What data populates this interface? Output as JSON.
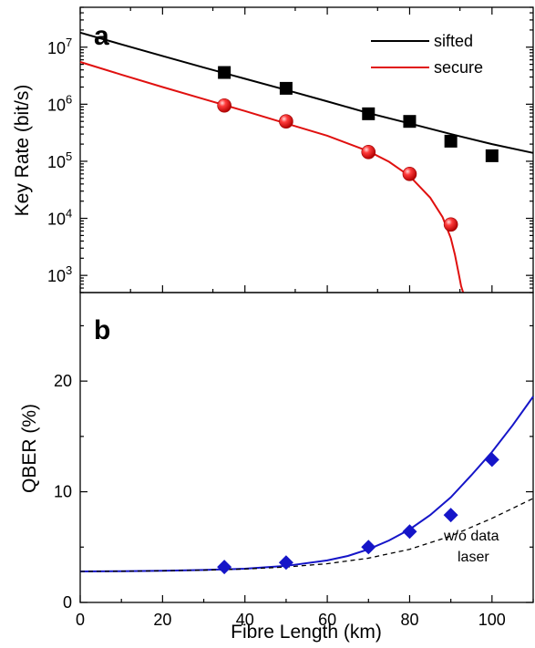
{
  "chart_data": [
    {
      "panel_label": "a",
      "type": "scatter",
      "ylabel": "Key Rate (bit/s)",
      "yscale": "log",
      "xlim": [
        0,
        110
      ],
      "ylim": [
        500,
        50000000
      ],
      "yticks": [
        {
          "value": 1000,
          "base": "10",
          "exp": "3"
        },
        {
          "value": 10000,
          "base": "10",
          "exp": "4"
        },
        {
          "value": 100000,
          "base": "10",
          "exp": "5"
        },
        {
          "value": 1000000,
          "base": "10",
          "exp": "6"
        },
        {
          "value": 10000000,
          "base": "10",
          "exp": "7"
        }
      ],
      "legend_position": "top-right",
      "series": [
        {
          "name": "sifted",
          "color": "#000000",
          "marker": "square",
          "x": [
            35,
            50,
            70,
            80,
            90,
            100
          ],
          "y": [
            3600000,
            1900000,
            680000,
            500000,
            225000,
            125000
          ],
          "fit": {
            "x": [
              0,
              10,
              20,
              30,
              40,
              50,
              60,
              70,
              80,
              90,
              100,
              110
            ],
            "y": [
              18000000,
              11200000,
              7000000,
              4400000,
              2800000,
              1780000,
              1120000,
              700000,
              460000,
              300000,
              200000,
              140000
            ]
          }
        },
        {
          "name": "secure",
          "color": "#e0100f",
          "marker": "sphere",
          "x": [
            35,
            50,
            70,
            80,
            90
          ],
          "y": [
            950000,
            500000,
            145000,
            60000,
            7800
          ],
          "fit": {
            "x": [
              0,
              10,
              20,
              30,
              40,
              50,
              60,
              70,
              75,
              80,
              85,
              88,
              90,
              91,
              92,
              92.5,
              93
            ],
            "y": [
              5500000,
              3300000,
              2000000,
              1230000,
              760000,
              460000,
              280000,
              150000,
              98000,
              55000,
              23000,
              10500,
              4500,
              2300,
              1000,
              650,
              400
            ]
          }
        }
      ]
    },
    {
      "panel_label": "b",
      "type": "scatter",
      "xlabel": "Fibre Length (km)",
      "ylabel": "QBER (%)",
      "xlim": [
        0,
        110
      ],
      "ylim": [
        0,
        28
      ],
      "xticks": [
        0,
        20,
        40,
        60,
        80,
        100
      ],
      "yticks": [
        0,
        10,
        20
      ],
      "series": [
        {
          "color": "#1515c8",
          "marker": "diamond",
          "x": [
            35,
            50,
            70,
            80,
            90,
            100
          ],
          "y": [
            3.2,
            3.6,
            5.0,
            6.4,
            7.9,
            12.9
          ],
          "fit": {
            "x": [
              0,
              10,
              20,
              30,
              40,
              50,
              60,
              65,
              70,
              75,
              80,
              85,
              90,
              95,
              100,
              105,
              110
            ],
            "y": [
              2.8,
              2.82,
              2.86,
              2.93,
              3.05,
              3.3,
              3.8,
              4.2,
              4.8,
              5.6,
              6.6,
              7.9,
              9.5,
              11.5,
              13.6,
              16.0,
              18.6
            ]
          }
        },
        {
          "color": "#000000",
          "dashed": true,
          "fit": {
            "x": [
              0,
              10,
              20,
              30,
              40,
              50,
              60,
              70,
              80,
              90,
              100,
              110
            ],
            "y": [
              2.8,
              2.82,
              2.86,
              2.92,
              3.02,
              3.2,
              3.5,
              4.0,
              4.8,
              6.0,
              7.6,
              9.4
            ]
          }
        }
      ],
      "annotation": [
        "w/o data",
        "laser"
      ]
    }
  ]
}
